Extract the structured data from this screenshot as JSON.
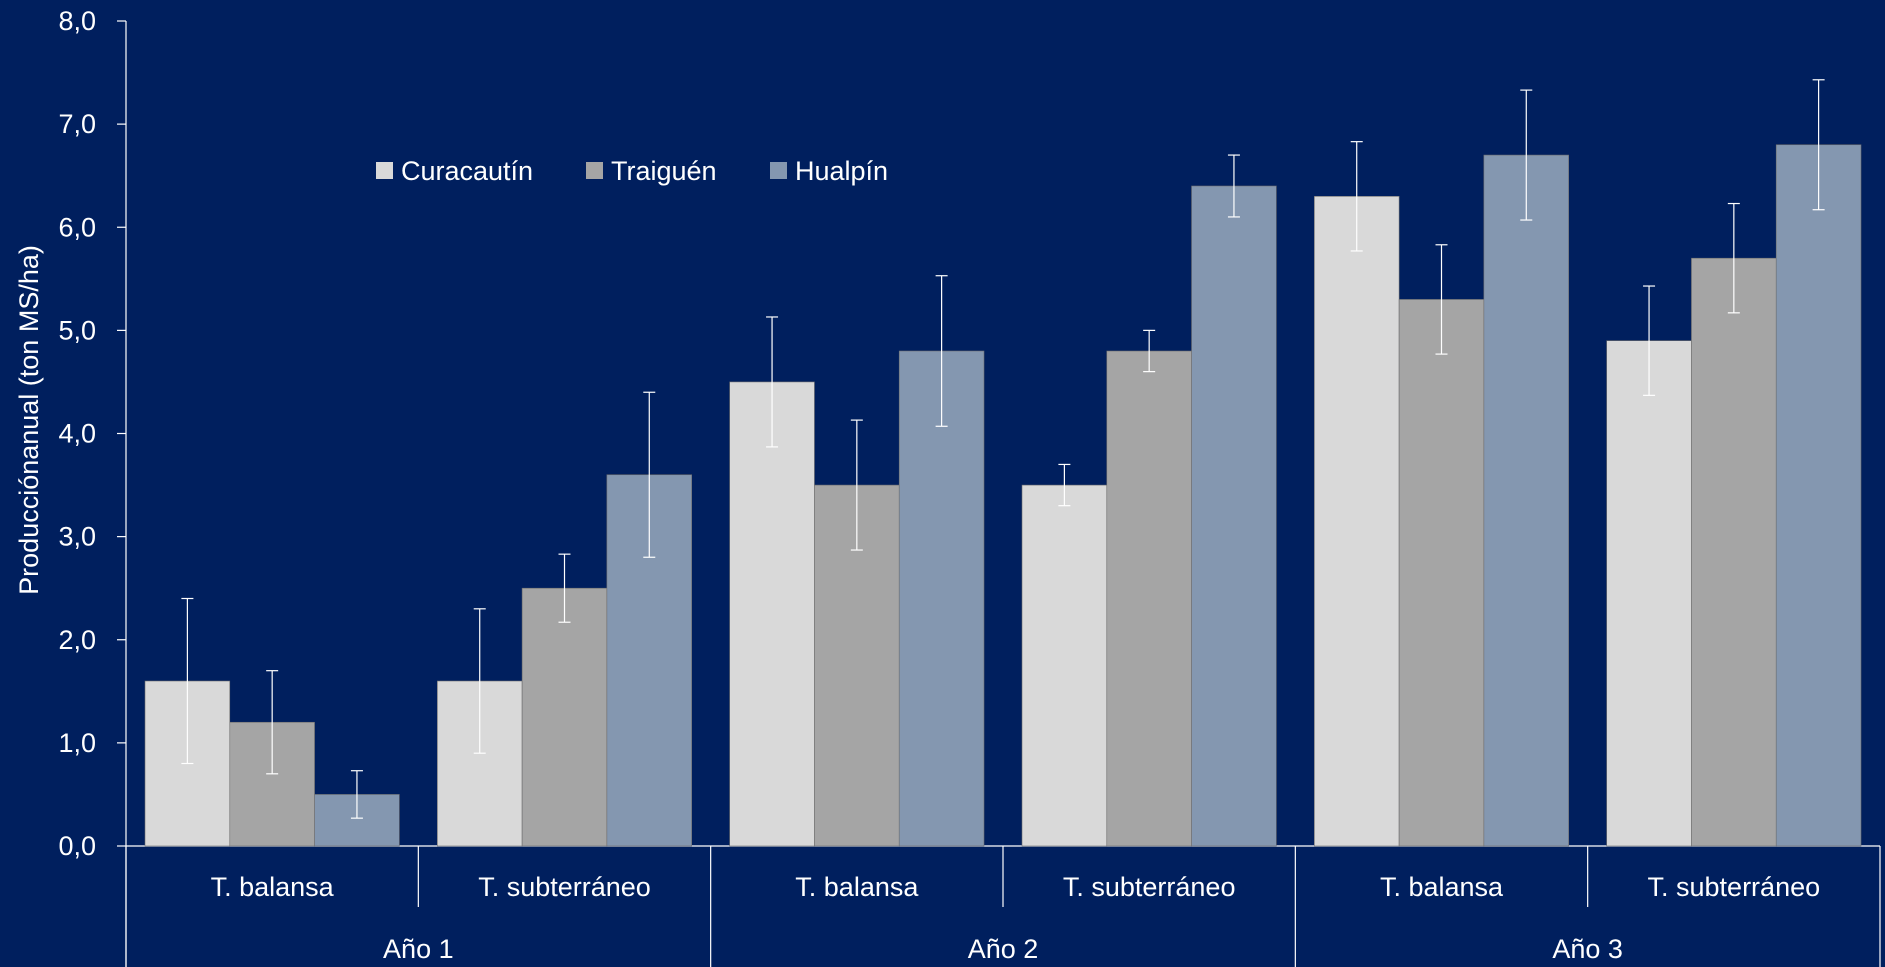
{
  "chart_data": {
    "type": "bar",
    "title": "",
    "ylabel": "Producciónanual (ton MS/ha)",
    "xlabel": "",
    "ylim": [
      0,
      8
    ],
    "y_ticks": [
      "0,0",
      "1,0",
      "2,0",
      "3,0",
      "4,0",
      "5,0",
      "6,0",
      "7,0",
      "8,0"
    ],
    "grid": false,
    "legend_position": "top-left",
    "groups": [
      "Año 1",
      "Año 2",
      "Año 3"
    ],
    "categories": [
      "T. balansa",
      "T. subterráneo",
      "T. balansa",
      "T. subterráneo",
      "T. balansa",
      "T. subterráneo"
    ],
    "category_group": [
      0,
      0,
      1,
      1,
      2,
      2
    ],
    "series": [
      {
        "name": "Curacautín",
        "color": "#D9D9D9",
        "values": [
          1.6,
          1.6,
          4.5,
          3.5,
          6.3,
          4.9
        ],
        "errors": [
          0.8,
          0.7,
          0.63,
          0.2,
          0.53,
          0.53
        ]
      },
      {
        "name": "Traiguén",
        "color": "#A5A5A5",
        "values": [
          1.2,
          2.5,
          3.5,
          4.8,
          5.3,
          5.7
        ],
        "errors": [
          0.5,
          0.33,
          0.63,
          0.2,
          0.53,
          0.53
        ]
      },
      {
        "name": "Hualpín",
        "color": "#8497B0",
        "values": [
          0.5,
          3.6,
          4.8,
          6.4,
          6.7,
          6.8
        ],
        "errors": [
          0.23,
          0.8,
          0.73,
          0.3,
          0.63,
          0.63
        ]
      }
    ]
  }
}
